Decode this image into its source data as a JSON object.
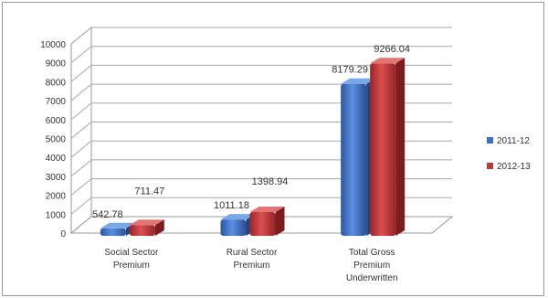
{
  "chart_data": {
    "type": "bar",
    "style": "3d-clustered-column",
    "title": "",
    "xlabel": "",
    "ylabel": "",
    "ylim": [
      0,
      10000
    ],
    "yticks": [
      0,
      1000,
      2000,
      3000,
      4000,
      5000,
      6000,
      7000,
      8000,
      9000,
      10000
    ],
    "grid": true,
    "legend_position": "right",
    "categories": [
      [
        "Social Sector",
        "Premium"
      ],
      [
        "Rural Sector",
        "Premium"
      ],
      [
        "Total Gross",
        "Premium",
        "Underwritten"
      ]
    ],
    "series": [
      {
        "name": "2011-12",
        "color": "#3d6fc4",
        "values": [
          542.78,
          1011.18,
          8179.29
        ],
        "labels": [
          "542.78",
          "1011.18",
          "8179.29"
        ]
      },
      {
        "name": "2012-13",
        "color": "#c0373a",
        "values": [
          711.47,
          1398.94,
          9266.04
        ],
        "labels": [
          "711.47",
          "1398.94",
          "9266.04"
        ]
      }
    ]
  }
}
